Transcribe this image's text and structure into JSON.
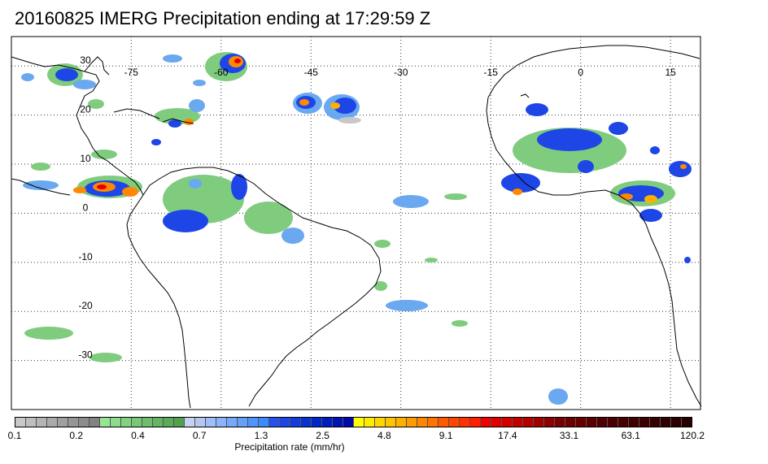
{
  "title": "20160825 IMERG Precipitation ending at 17:29:59 Z",
  "map": {
    "lon_range": [
      -95,
      20
    ],
    "lat_range": [
      -40,
      36
    ],
    "lon_labels": [
      "-75",
      "-60",
      "-45",
      "-30",
      "-15",
      "0",
      "15"
    ],
    "lat_labels": [
      "30",
      "20",
      "10",
      "0",
      "-10",
      "-20",
      "-30"
    ],
    "gridlines": true
  },
  "colorbar": {
    "unit_label": "Precipitation rate (mm/hr)",
    "tick_labels": [
      "0.1",
      "0.2",
      "0.4",
      "0.7",
      "1.3",
      "2.5",
      "4.8",
      "9.1",
      "17.4",
      "33.1",
      "63.1",
      "120.2"
    ],
    "colors": [
      "#c8c8c8",
      "#bebebe",
      "#b4b4b4",
      "#aaaaaa",
      "#a0a0a0",
      "#969696",
      "#8c8c8c",
      "#828282",
      "#96e696",
      "#8cdc8c",
      "#82d282",
      "#78c878",
      "#6ebe6e",
      "#64b464",
      "#5aaa5a",
      "#50a050",
      "#c8d2f0",
      "#b4c8f0",
      "#a0befa",
      "#8cb4fa",
      "#78aafa",
      "#64a0fa",
      "#5096fa",
      "#3c8cfa",
      "#2850f0",
      "#1e46e6",
      "#143cdc",
      "#0a32d2",
      "#0028c8",
      "#001ebe",
      "#0014b4",
      "#000aaa",
      "#ffff00",
      "#ffeb00",
      "#ffd700",
      "#ffc300",
      "#ffaf00",
      "#ff9b00",
      "#ff8700",
      "#ff7300",
      "#ff5a00",
      "#ff4600",
      "#ff3200",
      "#ff1e00",
      "#f00000",
      "#e10000",
      "#d20000",
      "#c30000",
      "#b40000",
      "#a00000",
      "#8c0000",
      "#780000",
      "#6e0000",
      "#640000",
      "#5a0000",
      "#500000",
      "#4b0000",
      "#460000",
      "#410000",
      "#3c0000",
      "#370000",
      "#320000",
      "#2d0000",
      "#280000"
    ]
  },
  "precip_palette": {
    "light_green": "#7fcc7f",
    "blue_light": "#6aa8f0",
    "blue": "#1e46e6",
    "blue_dark": "#001eb4",
    "yellow": "#ffe000",
    "orange": "#ff8800",
    "red": "#e00000"
  }
}
